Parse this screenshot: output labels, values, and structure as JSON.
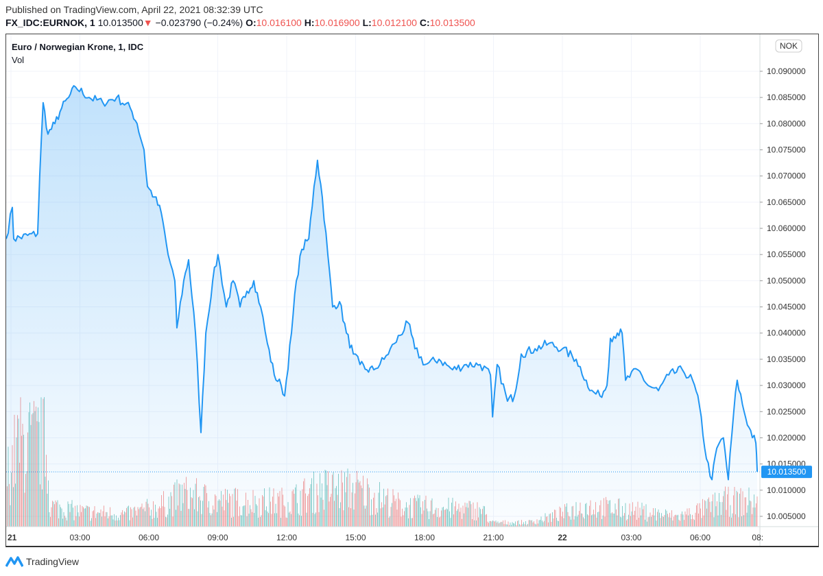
{
  "header": {
    "published": "Published on TradingView.com, April 22, 2021 08:32:39 UTC",
    "symbol": "FX_IDC:EURNOK, 1",
    "last": "10.013500",
    "change": "−0.023790 (−0.24%)",
    "o_label": "O:",
    "o": "10.016100",
    "h_label": "H:",
    "h": "10.016900",
    "l_label": "L:",
    "l": "10.012100",
    "c_label": "C:",
    "c": "10.013500"
  },
  "legend": {
    "title": "Euro / Norwegian Krone, 1, IDC",
    "vol": "Vol"
  },
  "footer": {
    "brand": "TradingView"
  },
  "colors": {
    "line": "#2196f3",
    "up": "#26a69a",
    "down": "#ef5350",
    "grid": "#f0f3fa"
  },
  "chart_data": {
    "type": "line",
    "title": "Euro / Norwegian Krone, 1, IDC",
    "currency_label": "NOK",
    "last_price_label": "10.013500",
    "last_price": 10.0135,
    "ylim": [
      10.003,
      10.097
    ],
    "y_ticks": [
      "10.005000",
      "10.010000",
      "10.015000",
      "10.020000",
      "10.025000",
      "10.030000",
      "10.035000",
      "10.040000",
      "10.045000",
      "10.050000",
      "10.055000",
      "10.060000",
      "10.065000",
      "10.070000",
      "10.075000",
      "10.080000",
      "10.085000",
      "10.090000"
    ],
    "x_unit": "hours since Apr 21 00:00 UTC",
    "xlim": [
      -0.21,
      32.9
    ],
    "x_ticks": [
      {
        "t": 0,
        "label": "21",
        "bold": true
      },
      {
        "t": 3,
        "label": "03:00"
      },
      {
        "t": 6,
        "label": "06:00"
      },
      {
        "t": 9,
        "label": "09:00"
      },
      {
        "t": 12,
        "label": "12:00"
      },
      {
        "t": 15,
        "label": "15:00"
      },
      {
        "t": 18,
        "label": "18:00"
      },
      {
        "t": 21,
        "label": "21:00"
      },
      {
        "t": 24,
        "label": "22",
        "bold": true
      },
      {
        "t": 27,
        "label": "03:00"
      },
      {
        "t": 30,
        "label": "06:00"
      },
      {
        "t": 32.5,
        "label": "08:"
      }
    ],
    "series": [
      {
        "name": "EURNOK",
        "points": [
          [
            -0.21,
            10.058
          ],
          [
            0.06,
            10.064
          ],
          [
            0.12,
            10.058
          ],
          [
            1.16,
            10.059
          ],
          [
            1.25,
            10.07
          ],
          [
            1.4,
            10.084
          ],
          [
            1.61,
            10.078
          ],
          [
            1.91,
            10.08
          ],
          [
            2.21,
            10.083
          ],
          [
            2.51,
            10.085
          ],
          [
            2.81,
            10.087
          ],
          [
            3.4,
            10.085
          ],
          [
            4.0,
            10.084
          ],
          [
            4.6,
            10.085
          ],
          [
            5.19,
            10.083
          ],
          [
            5.49,
            10.08
          ],
          [
            5.79,
            10.075
          ],
          [
            5.94,
            10.068
          ],
          [
            6.24,
            10.066
          ],
          [
            6.54,
            10.063
          ],
          [
            6.84,
            10.055
          ],
          [
            7.13,
            10.05
          ],
          [
            7.22,
            10.041
          ],
          [
            7.52,
            10.05
          ],
          [
            7.73,
            10.054
          ],
          [
            8.03,
            10.04
          ],
          [
            8.27,
            10.021
          ],
          [
            8.48,
            10.04
          ],
          [
            8.78,
            10.05
          ],
          [
            9.01,
            10.055
          ],
          [
            9.37,
            10.045
          ],
          [
            9.67,
            10.05
          ],
          [
            9.97,
            10.045
          ],
          [
            10.27,
            10.048
          ],
          [
            10.57,
            10.05
          ],
          [
            10.87,
            10.045
          ],
          [
            11.16,
            10.038
          ],
          [
            11.46,
            10.032
          ],
          [
            11.76,
            10.03
          ],
          [
            11.91,
            10.028
          ],
          [
            12.21,
            10.04
          ],
          [
            12.42,
            10.05
          ],
          [
            12.66,
            10.056
          ],
          [
            12.96,
            10.058
          ],
          [
            13.19,
            10.068
          ],
          [
            13.34,
            10.073
          ],
          [
            13.55,
            10.066
          ],
          [
            13.79,
            10.055
          ],
          [
            14.0,
            10.045
          ],
          [
            14.3,
            10.046
          ],
          [
            14.6,
            10.04
          ],
          [
            14.9,
            10.036
          ],
          [
            15.19,
            10.034
          ],
          [
            15.49,
            10.033
          ],
          [
            15.79,
            10.033
          ],
          [
            16.24,
            10.035
          ],
          [
            16.69,
            10.038
          ],
          [
            17.28,
            10.042
          ],
          [
            17.58,
            10.037
          ],
          [
            18.03,
            10.034
          ],
          [
            18.63,
            10.035
          ],
          [
            19.22,
            10.033
          ],
          [
            19.82,
            10.034
          ],
          [
            20.42,
            10.034
          ],
          [
            20.87,
            10.032
          ],
          [
            20.96,
            10.024
          ],
          [
            21.16,
            10.034
          ],
          [
            21.61,
            10.027
          ],
          [
            21.91,
            10.028
          ],
          [
            22.21,
            10.036
          ],
          [
            22.81,
            10.037
          ],
          [
            23.4,
            10.038
          ],
          [
            24.0,
            10.037
          ],
          [
            24.6,
            10.035
          ],
          [
            25.04,
            10.031
          ],
          [
            25.19,
            10.029
          ],
          [
            25.64,
            10.028
          ],
          [
            25.94,
            10.03
          ],
          [
            26.09,
            10.039
          ],
          [
            26.39,
            10.04
          ],
          [
            26.6,
            10.04
          ],
          [
            26.75,
            10.031
          ],
          [
            27.28,
            10.033
          ],
          [
            27.73,
            10.03
          ],
          [
            28.18,
            10.029
          ],
          [
            28.63,
            10.032
          ],
          [
            29.22,
            10.033
          ],
          [
            29.67,
            10.031
          ],
          [
            29.97,
            10.026
          ],
          [
            30.27,
            10.016
          ],
          [
            30.51,
            10.012
          ],
          [
            30.72,
            10.018
          ],
          [
            31.01,
            10.02
          ],
          [
            31.22,
            10.012
          ],
          [
            31.46,
            10.025
          ],
          [
            31.61,
            10.031
          ],
          [
            31.91,
            10.025
          ],
          [
            32.12,
            10.022
          ],
          [
            32.42,
            10.019
          ],
          [
            32.48,
            10.0135
          ]
        ]
      }
    ],
    "volume_envelope_relative": [
      [
        -0.21,
        0.6
      ],
      [
        0.3,
        1.0
      ],
      [
        1.5,
        1.0
      ],
      [
        1.7,
        0.25
      ],
      [
        3,
        0.18
      ],
      [
        5,
        0.15
      ],
      [
        6.5,
        0.25
      ],
      [
        7.5,
        0.4
      ],
      [
        9,
        0.3
      ],
      [
        12,
        0.3
      ],
      [
        13.5,
        0.45
      ],
      [
        15,
        0.45
      ],
      [
        17,
        0.25
      ],
      [
        20.5,
        0.2
      ],
      [
        20.9,
        0.05
      ],
      [
        22.5,
        0.05
      ],
      [
        23.5,
        0.12
      ],
      [
        25,
        0.25
      ],
      [
        27,
        0.2
      ],
      [
        29,
        0.12
      ],
      [
        30,
        0.2
      ],
      [
        31,
        0.3
      ],
      [
        32.5,
        0.3
      ]
    ]
  }
}
